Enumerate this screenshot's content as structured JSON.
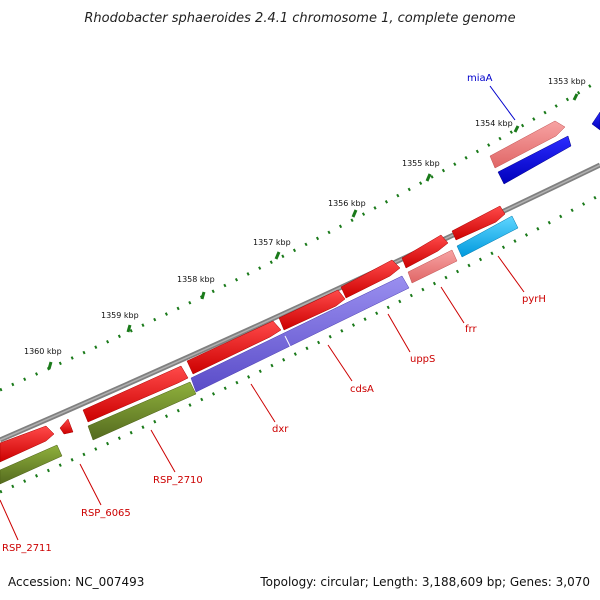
{
  "title": "Rhodobacter sphaeroides 2.4.1 chromosome 1, complete genome",
  "footer": {
    "accession": "Accession: NC_007493",
    "summary": "Topology: circular; Length: 3,188,609 bp; Genes: 3,070"
  },
  "kbp_labels": [
    "1353 kbp",
    "1354 kbp",
    "1355 kbp",
    "1356 kbp",
    "1357 kbp",
    "1358 kbp",
    "1359 kbp",
    "1360 kbp"
  ],
  "genes": [
    {
      "name": "miaA",
      "color": "#0000cc"
    },
    {
      "name": "pyrH",
      "color": "#cc0000"
    },
    {
      "name": "frr",
      "color": "#cc0000"
    },
    {
      "name": "uppS",
      "color": "#cc0000"
    },
    {
      "name": "cdsA",
      "color": "#cc0000"
    },
    {
      "name": "dxr",
      "color": "#cc0000"
    },
    {
      "name": "RSP_2710",
      "color": "#cc0000"
    },
    {
      "name": "RSP_6065",
      "color": "#cc0000"
    },
    {
      "name": "RSP_2711",
      "color": "#cc0000"
    }
  ],
  "colors": {
    "backbone": "#808080",
    "tick": "#1a7a1a",
    "gene_red": "#ee0000",
    "gene_pink": "#f08080",
    "gene_blue": "#0000e0",
    "gene_cyan": "#00bfff",
    "gene_purple": "#7766dd",
    "gene_olive": "#6b8e23"
  }
}
